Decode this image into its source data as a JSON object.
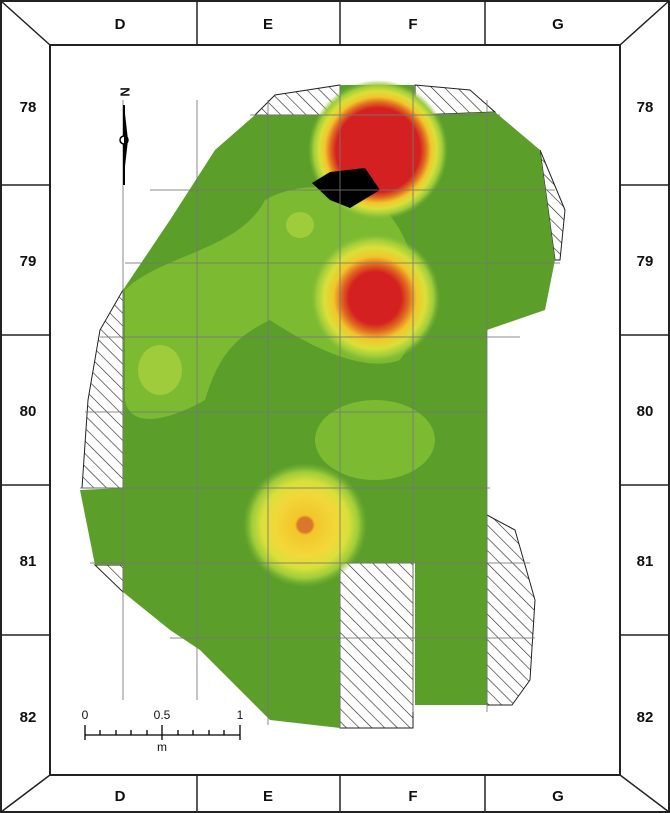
{
  "columns_top": [
    "D",
    "E",
    "F",
    "G"
  ],
  "columns_bottom": [
    "D",
    "E",
    "F",
    "G"
  ],
  "rows_left": [
    "78",
    "79",
    "80",
    "81",
    "82"
  ],
  "rows_right": [
    "78",
    "79",
    "80",
    "81",
    "82"
  ],
  "north": "N",
  "scale_bar": {
    "ticks": [
      "0",
      "0.5",
      "1"
    ],
    "unit": "m"
  }
}
